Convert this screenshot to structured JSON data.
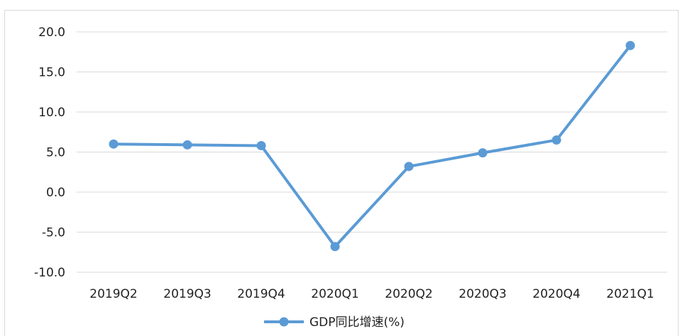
{
  "chart_data": {
    "type": "line",
    "categories": [
      "2019Q2",
      "2019Q3",
      "2019Q4",
      "2020Q1",
      "2020Q2",
      "2020Q3",
      "2020Q4",
      "2021Q1"
    ],
    "series": [
      {
        "name": "GDP同比增速(%)",
        "values": [
          6.0,
          5.9,
          5.8,
          -6.8,
          3.2,
          4.9,
          6.5,
          18.3
        ]
      }
    ],
    "y_ticks": [
      "20.0",
      "15.0",
      "10.0",
      "5.0",
      "0.0",
      "-5.0",
      "-10.0"
    ],
    "ylim": [
      -10,
      20
    ],
    "grid": true,
    "legend_position": "bottom",
    "colors": {
      "series": "#5b9bd5",
      "grid": "#d9d9d9",
      "text": "#222222"
    }
  }
}
